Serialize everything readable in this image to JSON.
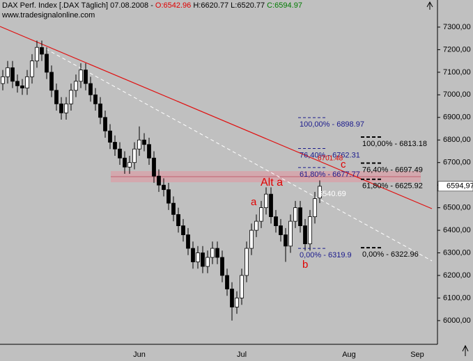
{
  "header": {
    "title": "DAX Perf. Index [.DAX  Täglich] 07.08.2008 - ",
    "open": "O:6542.96",
    "high": " H:6620.77",
    "low": " L:6520.77",
    "close": " C:6594.97",
    "subtitle": "www.tradesignalonline.com"
  },
  "chart_data": {
    "type": "candlestick",
    "categories": [
      null,
      null,
      null,
      null,
      null,
      null,
      null,
      null,
      null,
      null,
      null,
      null,
      null,
      null,
      null,
      null,
      null,
      null,
      null,
      null,
      null,
      null,
      null,
      null,
      null,
      null,
      null,
      null,
      "Jun",
      null,
      null,
      null,
      null,
      null,
      null,
      null,
      null,
      null,
      null,
      null,
      null,
      null,
      null,
      null,
      null,
      null,
      null,
      null,
      null,
      "Jul",
      null,
      null,
      null,
      null,
      null,
      null,
      null,
      null,
      null,
      null,
      null,
      null,
      null,
      null,
      null,
      null,
      null,
      null,
      null,
      null,
      null,
      "Aug",
      null,
      null,
      null,
      null,
      null,
      null,
      null,
      null,
      null,
      null,
      null,
      null,
      null,
      "Sep",
      null,
      null
    ],
    "open": [
      7050,
      7080,
      7120,
      7060,
      7040,
      7030,
      7080,
      7150,
      7210,
      7180,
      7100,
      7020,
      6960,
      6920,
      6960,
      7020,
      7060,
      7110,
      7050,
      7000,
      6960,
      6900,
      6840,
      6790,
      6760,
      6720,
      6680,
      6700,
      6760,
      6800,
      6780,
      6720,
      6640,
      6600,
      6580,
      6520,
      6470,
      6420,
      6380,
      6320,
      6260,
      6300,
      6240,
      6280,
      6320,
      6280,
      6200,
      6140,
      6060,
      6100,
      6200,
      6320,
      6400,
      6440,
      6500,
      6560,
      6460,
      6420,
      6380,
      6330,
      6440,
      6500,
      6420,
      6340,
      6460,
      6542.96,
      null,
      null,
      null,
      null,
      null,
      null,
      null,
      null,
      null,
      null,
      null,
      null,
      null,
      null,
      null,
      null,
      null,
      null,
      null,
      null,
      null,
      null
    ],
    "high": [
      7110,
      7150,
      7150,
      7090,
      7070,
      7110,
      7180,
      7240,
      7240,
      7210,
      7130,
      7050,
      6990,
      6990,
      7050,
      7090,
      7140,
      7140,
      7080,
      7030,
      6990,
      6930,
      6870,
      6820,
      6790,
      6750,
      6730,
      6790,
      6860,
      6830,
      6810,
      6750,
      6670,
      6630,
      6610,
      6550,
      6500,
      6450,
      6410,
      6350,
      6330,
      6330,
      6310,
      6350,
      6350,
      6310,
      6230,
      6170,
      6130,
      6230,
      6350,
      6430,
      6470,
      6530,
      6590,
      6590,
      6490,
      6450,
      6410,
      6470,
      6530,
      6530,
      6450,
      6490,
      6570,
      6620.77,
      null,
      null,
      null,
      null,
      null,
      null,
      null,
      null,
      null,
      null,
      null,
      null,
      null,
      null,
      null,
      null,
      null,
      null,
      null,
      null,
      null,
      null
    ],
    "low": [
      7020,
      7050,
      7030,
      7010,
      7000,
      7000,
      7050,
      7120,
      7150,
      7070,
      6990,
      6930,
      6890,
      6890,
      6930,
      6990,
      7030,
      7020,
      6970,
      6930,
      6870,
      6810,
      6760,
      6730,
      6690,
      6650,
      6650,
      6670,
      6730,
      6750,
      6690,
      6610,
      6570,
      6550,
      6490,
      6440,
      6390,
      6350,
      6290,
      6230,
      6230,
      6210,
      6210,
      6250,
      6250,
      6170,
      6110,
      6000,
      6030,
      6070,
      6170,
      6290,
      6370,
      6410,
      6470,
      6430,
      6390,
      6350,
      6260,
      6300,
      6410,
      6390,
      6310,
      6310,
      6430,
      6520.77,
      null,
      null,
      null,
      null,
      null,
      null,
      null,
      null,
      null,
      null,
      null,
      null,
      null,
      null,
      null,
      null,
      null,
      null,
      null,
      null,
      null,
      null
    ],
    "close": [
      7080,
      7120,
      7060,
      7040,
      7030,
      7080,
      7150,
      7210,
      7180,
      7100,
      7020,
      6960,
      6920,
      6960,
      7020,
      7060,
      7110,
      7050,
      7000,
      6960,
      6900,
      6840,
      6790,
      6760,
      6720,
      6680,
      6700,
      6760,
      6800,
      6780,
      6720,
      6640,
      6600,
      6580,
      6520,
      6470,
      6420,
      6380,
      6320,
      6260,
      6300,
      6240,
      6280,
      6320,
      6280,
      6200,
      6140,
      6060,
      6100,
      6200,
      6320,
      6400,
      6440,
      6500,
      6560,
      6460,
      6420,
      6380,
      6330,
      6440,
      6500,
      6420,
      6340,
      6460,
      6540,
      6594.97,
      null,
      null,
      null,
      null,
      null,
      null,
      null,
      null,
      null,
      null,
      null,
      null,
      null,
      null,
      null,
      null,
      null,
      null,
      null,
      null,
      null,
      null
    ],
    "ylim": [
      5895,
      7420
    ],
    "yticks": [
      {
        "value": 7300,
        "label": "7300,00"
      },
      {
        "value": 7200,
        "label": "7200,00"
      },
      {
        "value": 7100,
        "label": "7100,00"
      },
      {
        "value": 7000,
        "label": "7000,00"
      },
      {
        "value": 6900,
        "label": "6900,00"
      },
      {
        "value": 6800,
        "label": "6800,00"
      },
      {
        "value": 6700,
        "label": "6700,00"
      },
      {
        "value": 6600,
        "label": "6600,00"
      },
      {
        "value": 6500,
        "label": "6500,00"
      },
      {
        "value": 6400,
        "label": "6400,00"
      },
      {
        "value": 6300,
        "label": "6300,00"
      },
      {
        "value": 6200,
        "label": "6200,00"
      },
      {
        "value": 6100,
        "label": "6100,00"
      },
      {
        "value": 6000,
        "label": "6000,00"
      }
    ],
    "last_price_label": "6594,97",
    "fib_sets": [
      {
        "color": "#1a1a8c",
        "levels": [
          {
            "value": 6898.97,
            "label": "100,00% - 6898.97"
          },
          {
            "value": 6762.31,
            "label": "76,40% - 6762.31"
          },
          {
            "value": 6677.77,
            "label": "61,80% - 6677.77"
          },
          {
            "value": 6319.9,
            "label": "0,00% - 6319.9"
          }
        ]
      },
      {
        "color": "#000000",
        "levels": [
          {
            "value": 6813.18,
            "label": "100,00% - 6813.18"
          },
          {
            "value": 6697.49,
            "label": "76,40% - 6697.49"
          },
          {
            "value": 6625.92,
            "label": "61,80% - 6625.92"
          },
          {
            "value": 6322.96,
            "label": "0,00% - 6322.96"
          }
        ]
      }
    ],
    "annotations": [
      "6701.48",
      "6540.69",
      "Alt a",
      "a",
      "b",
      "c"
    ]
  }
}
